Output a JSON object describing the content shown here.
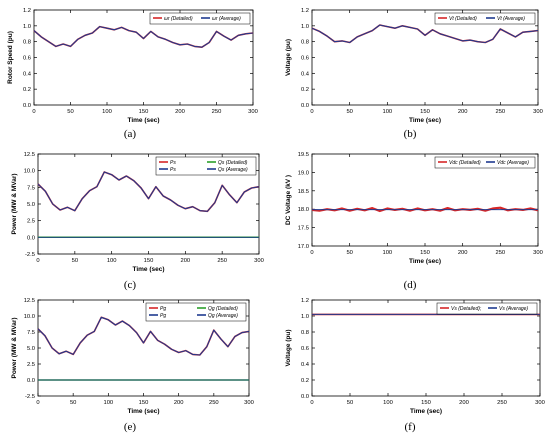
{
  "figure": {
    "panel_labels": [
      "(a)",
      "(b)",
      "(c)",
      "(d)",
      "(e)",
      "(f)"
    ]
  },
  "chart_data": [
    {
      "id": "a",
      "type": "line",
      "xlabel": "Time (sec)",
      "ylabel": "Rotor Speed (pu)",
      "xlim": [
        0,
        300
      ],
      "ylim": [
        0.0,
        1.2
      ],
      "xticks": [
        "0",
        "50",
        "100",
        "150",
        "200",
        "250",
        "300"
      ],
      "yticks": [
        "0.0",
        "0.2",
        "0.4",
        "0.6",
        "0.8",
        "1.0",
        "1.2"
      ],
      "legend_position": "top-right",
      "legend_columns": 2,
      "series": [
        {
          "name": "ωr (Detailed)",
          "color": "#d62728",
          "width": 1.6,
          "x": [
            0,
            10,
            20,
            30,
            40,
            50,
            60,
            70,
            80,
            90,
            100,
            110,
            120,
            130,
            140,
            150,
            160,
            170,
            180,
            190,
            200,
            210,
            220,
            230,
            240,
            250,
            260,
            270,
            280,
            290,
            300
          ],
          "y": [
            0.94,
            0.86,
            0.8,
            0.74,
            0.77,
            0.74,
            0.83,
            0.88,
            0.91,
            0.99,
            0.97,
            0.95,
            0.98,
            0.94,
            0.92,
            0.84,
            0.93,
            0.86,
            0.83,
            0.79,
            0.76,
            0.77,
            0.74,
            0.73,
            0.79,
            0.93,
            0.87,
            0.82,
            0.88,
            0.9,
            0.91
          ]
        },
        {
          "name": "ωr (Average)",
          "color": "#1f3a8f",
          "width": 1.1,
          "x": [
            0,
            10,
            20,
            30,
            40,
            50,
            60,
            70,
            80,
            90,
            100,
            110,
            120,
            130,
            140,
            150,
            160,
            170,
            180,
            190,
            200,
            210,
            220,
            230,
            240,
            250,
            260,
            270,
            280,
            290,
            300
          ],
          "y": [
            0.94,
            0.86,
            0.8,
            0.74,
            0.77,
            0.74,
            0.83,
            0.88,
            0.91,
            0.99,
            0.97,
            0.95,
            0.98,
            0.94,
            0.92,
            0.84,
            0.93,
            0.86,
            0.83,
            0.79,
            0.76,
            0.77,
            0.74,
            0.73,
            0.79,
            0.93,
            0.87,
            0.82,
            0.88,
            0.9,
            0.91
          ]
        }
      ]
    },
    {
      "id": "b",
      "type": "line",
      "xlabel": "Time (sec)",
      "ylabel": "Voltage (pu)",
      "xlim": [
        0,
        300
      ],
      "ylim": [
        0.0,
        1.2
      ],
      "xticks": [
        "0",
        "50",
        "100",
        "150",
        "200",
        "250",
        "300"
      ],
      "yticks": [
        "0.0",
        "0.2",
        "0.4",
        "0.6",
        "0.8",
        "1.0",
        "1.2"
      ],
      "legend_position": "top-right",
      "legend_columns": 2,
      "series": [
        {
          "name": "Vt (Detailed)",
          "color": "#d62728",
          "width": 1.6,
          "x": [
            0,
            10,
            20,
            30,
            40,
            50,
            60,
            70,
            80,
            90,
            100,
            110,
            120,
            130,
            140,
            150,
            160,
            170,
            180,
            190,
            200,
            210,
            220,
            230,
            240,
            250,
            260,
            270,
            280,
            290,
            300
          ],
          "y": [
            0.97,
            0.93,
            0.87,
            0.8,
            0.81,
            0.79,
            0.86,
            0.9,
            0.94,
            1.01,
            0.99,
            0.97,
            1.0,
            0.98,
            0.96,
            0.88,
            0.95,
            0.9,
            0.87,
            0.84,
            0.81,
            0.82,
            0.8,
            0.79,
            0.83,
            0.96,
            0.91,
            0.86,
            0.92,
            0.93,
            0.94
          ]
        },
        {
          "name": "Vt (Average)",
          "color": "#1f3a8f",
          "width": 1.1,
          "x": [
            0,
            10,
            20,
            30,
            40,
            50,
            60,
            70,
            80,
            90,
            100,
            110,
            120,
            130,
            140,
            150,
            160,
            170,
            180,
            190,
            200,
            210,
            220,
            230,
            240,
            250,
            260,
            270,
            280,
            290,
            300
          ],
          "y": [
            0.97,
            0.93,
            0.87,
            0.8,
            0.81,
            0.79,
            0.86,
            0.9,
            0.94,
            1.01,
            0.99,
            0.97,
            1.0,
            0.98,
            0.96,
            0.88,
            0.95,
            0.9,
            0.87,
            0.84,
            0.81,
            0.82,
            0.8,
            0.79,
            0.83,
            0.96,
            0.91,
            0.86,
            0.92,
            0.93,
            0.94
          ]
        }
      ]
    },
    {
      "id": "c",
      "type": "line",
      "xlabel": "Time (sec)",
      "ylabel": "Power (MW & MVar)",
      "xlim": [
        0,
        300
      ],
      "ylim": [
        -2.5,
        12.5
      ],
      "xticks": [
        "0",
        "50",
        "100",
        "150",
        "200",
        "250",
        "300"
      ],
      "yticks": [
        "-2.5",
        "0.0",
        "2.5",
        "5.0",
        "7.5",
        "10.0",
        "12.5"
      ],
      "legend_position": "top-right",
      "legend_columns": 2,
      "series": [
        {
          "name": "Ps",
          "color": "#d62728",
          "width": 1.6,
          "x": [
            0,
            10,
            20,
            30,
            40,
            50,
            60,
            70,
            80,
            90,
            100,
            110,
            120,
            130,
            140,
            150,
            160,
            170,
            180,
            190,
            200,
            210,
            220,
            230,
            240,
            250,
            260,
            270,
            280,
            290,
            300
          ],
          "y": [
            8.0,
            6.9,
            5.0,
            4.1,
            4.5,
            4.0,
            5.8,
            7.0,
            7.6,
            9.8,
            9.4,
            8.6,
            9.2,
            8.5,
            7.4,
            5.8,
            7.6,
            6.2,
            5.6,
            4.8,
            4.3,
            4.6,
            4.0,
            3.9,
            5.2,
            7.8,
            6.4,
            5.2,
            6.8,
            7.4,
            7.6
          ]
        },
        {
          "name": "Ps",
          "color": "#1f3a8f",
          "width": 1.1,
          "x": [
            0,
            10,
            20,
            30,
            40,
            50,
            60,
            70,
            80,
            90,
            100,
            110,
            120,
            130,
            140,
            150,
            160,
            170,
            180,
            190,
            200,
            210,
            220,
            230,
            240,
            250,
            260,
            270,
            280,
            290,
            300
          ],
          "y": [
            8.0,
            6.9,
            5.0,
            4.1,
            4.5,
            4.0,
            5.8,
            7.0,
            7.6,
            9.8,
            9.4,
            8.6,
            9.2,
            8.5,
            7.4,
            5.8,
            7.6,
            6.2,
            5.6,
            4.8,
            4.3,
            4.6,
            4.0,
            3.9,
            5.2,
            7.8,
            6.4,
            5.2,
            6.8,
            7.4,
            7.6
          ]
        },
        {
          "name": "Qs (Detailed)",
          "color": "#2ca02c",
          "width": 1.5,
          "x": [
            0,
            300
          ],
          "y": [
            0.0,
            0.0
          ]
        },
        {
          "name": "Qs (Average)",
          "color": "#1f3a8f",
          "width": 0.8,
          "x": [
            0,
            300
          ],
          "y": [
            0.0,
            0.0
          ]
        }
      ]
    },
    {
      "id": "d",
      "type": "line",
      "xlabel": "Time (sec)",
      "ylabel": "DC Voltage (kV )",
      "xlim": [
        0,
        300
      ],
      "ylim": [
        17.0,
        19.5
      ],
      "xticks": [
        "0",
        "50",
        "100",
        "150",
        "200",
        "250",
        "300"
      ],
      "yticks": [
        "17.0",
        "17.5",
        "18.0",
        "18.5",
        "19.0",
        "19.5"
      ],
      "legend_position": "top-right",
      "legend_columns": 2,
      "series": [
        {
          "name": "Vdc (Detailed)",
          "color": "#d62728",
          "width": 2.2,
          "x": [
            0,
            10,
            20,
            30,
            40,
            50,
            60,
            70,
            80,
            90,
            100,
            110,
            120,
            130,
            140,
            150,
            160,
            170,
            180,
            190,
            200,
            210,
            220,
            230,
            240,
            250,
            260,
            270,
            280,
            290,
            300
          ],
          "y": [
            17.98,
            17.96,
            18.0,
            17.97,
            18.02,
            17.96,
            18.01,
            17.97,
            18.03,
            17.95,
            18.02,
            17.98,
            18.01,
            17.96,
            18.02,
            17.97,
            18.0,
            17.96,
            18.03,
            17.97,
            18.0,
            17.98,
            18.01,
            17.96,
            18.02,
            18.04,
            17.97,
            18.0,
            17.98,
            18.02,
            17.97
          ]
        },
        {
          "name": "Vdc (Average)",
          "color": "#1f3a8f",
          "width": 1.0,
          "x": [
            0,
            300
          ],
          "y": [
            17.99,
            17.99
          ]
        }
      ]
    },
    {
      "id": "e",
      "type": "line",
      "xlabel": "Time (sec)",
      "ylabel": "Power (MW & MVar)",
      "xlim": [
        0,
        300
      ],
      "ylim": [
        -2.5,
        12.5
      ],
      "xticks": [
        "0",
        "50",
        "100",
        "150",
        "200",
        "250",
        "300"
      ],
      "yticks": [
        "-2.5",
        "0.0",
        "2.5",
        "5.0",
        "7.5",
        "10.0",
        "12.5"
      ],
      "legend_position": "top-right",
      "legend_columns": 2,
      "series": [
        {
          "name": "Pg",
          "color": "#d62728",
          "width": 1.6,
          "x": [
            0,
            10,
            20,
            30,
            40,
            50,
            60,
            70,
            80,
            90,
            100,
            110,
            120,
            130,
            140,
            150,
            160,
            170,
            180,
            190,
            200,
            210,
            220,
            230,
            240,
            250,
            260,
            270,
            280,
            290,
            300
          ],
          "y": [
            8.0,
            6.9,
            5.0,
            4.1,
            4.5,
            4.0,
            5.8,
            7.0,
            7.6,
            9.8,
            9.4,
            8.6,
            9.2,
            8.5,
            7.4,
            5.8,
            7.6,
            6.2,
            5.6,
            4.8,
            4.3,
            4.6,
            4.0,
            3.9,
            5.2,
            7.8,
            6.4,
            5.2,
            6.8,
            7.4,
            7.6
          ]
        },
        {
          "name": "Pg",
          "color": "#1f3a8f",
          "width": 1.1,
          "x": [
            0,
            10,
            20,
            30,
            40,
            50,
            60,
            70,
            80,
            90,
            100,
            110,
            120,
            130,
            140,
            150,
            160,
            170,
            180,
            190,
            200,
            210,
            220,
            230,
            240,
            250,
            260,
            270,
            280,
            290,
            300
          ],
          "y": [
            8.0,
            6.9,
            5.0,
            4.1,
            4.5,
            4.0,
            5.8,
            7.0,
            7.6,
            9.8,
            9.4,
            8.6,
            9.2,
            8.5,
            7.4,
            5.8,
            7.6,
            6.2,
            5.6,
            4.8,
            4.3,
            4.6,
            4.0,
            3.9,
            5.2,
            7.8,
            6.4,
            5.2,
            6.8,
            7.4,
            7.6
          ]
        },
        {
          "name": "Qg (Detailed)",
          "color": "#2ca02c",
          "width": 1.5,
          "x": [
            0,
            300
          ],
          "y": [
            0.0,
            0.0
          ]
        },
        {
          "name": "Qg (Average)",
          "color": "#1f3a8f",
          "width": 0.8,
          "x": [
            0,
            300
          ],
          "y": [
            0.0,
            0.0
          ]
        }
      ]
    },
    {
      "id": "f",
      "type": "line",
      "xlabel": "Time (sec)",
      "ylabel": "Voltage (pu)",
      "xlim": [
        0,
        300
      ],
      "ylim": [
        0.0,
        1.2
      ],
      "xticks": [
        "0",
        "50",
        "100",
        "150",
        "200",
        "250",
        "300"
      ],
      "yticks": [
        "0.0",
        "0.2",
        "0.4",
        "0.6",
        "0.8",
        "1.0",
        "1.2"
      ],
      "legend_position": "top-right",
      "legend_columns": 2,
      "series": [
        {
          "name": "Vs (Detailed);",
          "color": "#d62728",
          "width": 1.6,
          "x": [
            0,
            300
          ],
          "y": [
            1.02,
            1.02
          ]
        },
        {
          "name": "Vs (Average)",
          "color": "#1f3a8f",
          "width": 1.0,
          "x": [
            0,
            300
          ],
          "y": [
            1.02,
            1.02
          ]
        }
      ]
    }
  ]
}
